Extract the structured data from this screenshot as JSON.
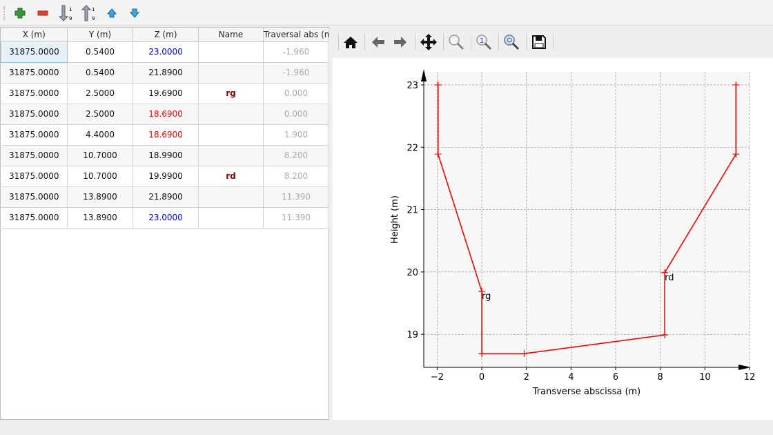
{
  "toolbar": {
    "icons": [
      "add-row-icon",
      "remove-row-icon",
      "sort-ascending-icon",
      "sort-descending-icon",
      "move-up-icon",
      "move-down-icon"
    ]
  },
  "table": {
    "headers": [
      "X (m)",
      "Y (m)",
      "Z (m)",
      "Name",
      "Traversal abs (m"
    ],
    "rows": [
      {
        "x": "31875.0000",
        "y": "0.5400",
        "z": "23.0000",
        "zcolor": "#0000ff",
        "name": "",
        "t": "-1.960"
      },
      {
        "x": "31875.0000",
        "y": "0.5400",
        "z": "21.8900",
        "zcolor": "#111111",
        "name": "",
        "t": "-1.960"
      },
      {
        "x": "31875.0000",
        "y": "2.5000",
        "z": "19.6900",
        "zcolor": "#111111",
        "name": "rg",
        "t": "0.000"
      },
      {
        "x": "31875.0000",
        "y": "2.5000",
        "z": "18.6900",
        "zcolor": "#ff0000",
        "name": "",
        "t": "0.000"
      },
      {
        "x": "31875.0000",
        "y": "4.4000",
        "z": "18.6900",
        "zcolor": "#ff0000",
        "name": "",
        "t": "1.900"
      },
      {
        "x": "31875.0000",
        "y": "10.7000",
        "z": "18.9900",
        "zcolor": "#111111",
        "name": "",
        "t": "8.200"
      },
      {
        "x": "31875.0000",
        "y": "10.7000",
        "z": "19.9900",
        "zcolor": "#111111",
        "name": "rd",
        "t": "8.200"
      },
      {
        "x": "31875.0000",
        "y": "13.8900",
        "z": "21.8900",
        "zcolor": "#111111",
        "name": "",
        "t": "11.390"
      },
      {
        "x": "31875.0000",
        "y": "13.8900",
        "z": "23.0000",
        "zcolor": "#0000ff",
        "name": "",
        "t": "11.390"
      }
    ]
  },
  "plot_toolbar": {
    "icons": [
      "home-icon",
      "back-icon",
      "forward-icon",
      "pan-icon",
      "zoom-icon",
      "zoom-1-icon",
      "zoom-fit-icon",
      "save-icon"
    ]
  },
  "chart_data": {
    "type": "line",
    "xlabel": "Transverse abscissa (m)",
    "ylabel": "Height (m)",
    "xlim": [
      -2.6,
      12
    ],
    "ylim": [
      18.47,
      23.21
    ],
    "xticks": [
      "−2",
      "0",
      "2",
      "4",
      "6",
      "8",
      "10",
      "12"
    ],
    "xtick_values": [
      -2,
      0,
      2,
      4,
      6,
      8,
      10,
      12
    ],
    "yticks": [
      "19",
      "20",
      "21",
      "22",
      "23"
    ],
    "ytick_values": [
      19,
      20,
      21,
      22,
      23
    ],
    "grid": true,
    "series": [
      {
        "color": "#ff0000",
        "marker": "+",
        "x": [
          -1.96,
          -1.96,
          0,
          0,
          1.9,
          8.2,
          8.2,
          11.39,
          11.39
        ],
        "y": [
          23,
          21.89,
          19.69,
          18.69,
          18.69,
          18.99,
          19.99,
          21.89,
          23
        ]
      }
    ],
    "annotations": [
      {
        "text": "rg",
        "x": 0,
        "y": 19.69
      },
      {
        "text": "rd",
        "x": 8.2,
        "y": 19.99
      }
    ]
  }
}
